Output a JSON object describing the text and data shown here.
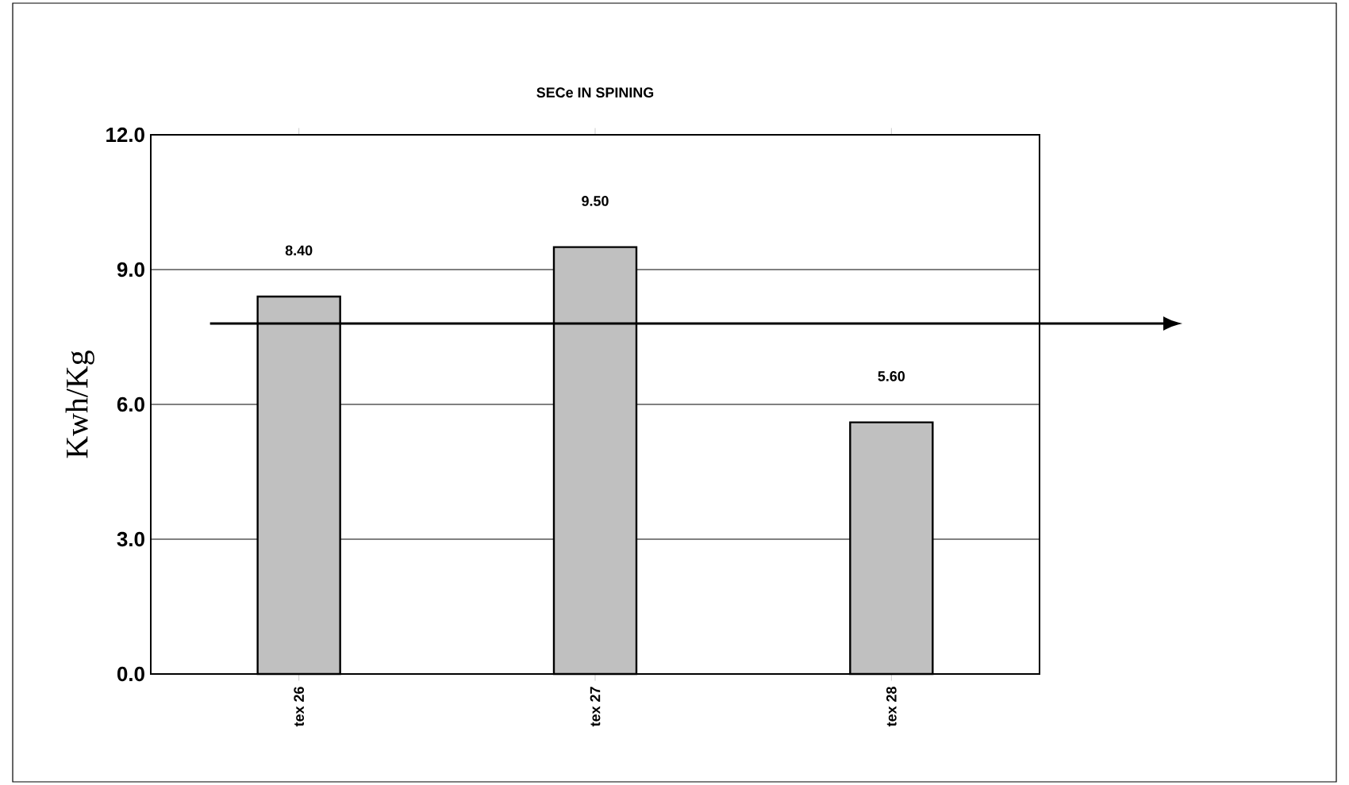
{
  "chart_data": {
    "type": "bar",
    "title": "SECe IN SPINING",
    "ylabel": "Kwh/Kg",
    "categories": [
      "tex 26",
      "tex 27",
      "tex 28"
    ],
    "values": [
      8.4,
      9.5,
      5.6
    ],
    "color": "#c0c0c0",
    "value_labels": [
      "8.40",
      "9.50",
      "5.60"
    ],
    "ylim": [
      0,
      12
    ],
    "yticks": [
      {
        "value": 0,
        "label": "0.0"
      },
      {
        "value": 3,
        "label": "3.0"
      },
      {
        "value": 6,
        "label": "6.0"
      },
      {
        "value": 9,
        "label": "9.0"
      },
      {
        "value": 12,
        "label": "12.0"
      }
    ],
    "grid": "y",
    "ref_lines": [
      {
        "axis": "y",
        "value": 7.8,
        "line_style": "solid"
      }
    ]
  }
}
